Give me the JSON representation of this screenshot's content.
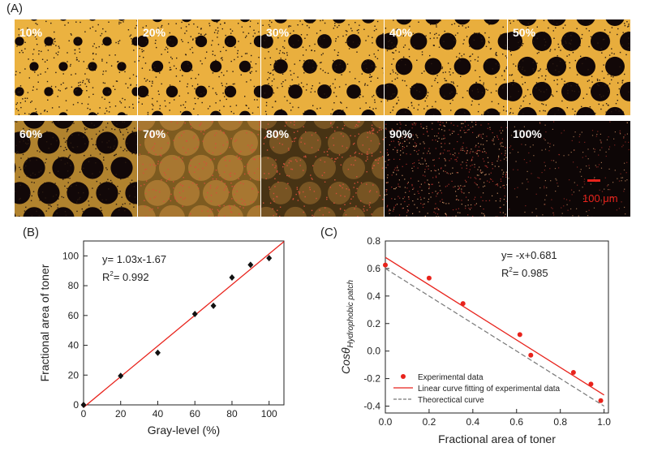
{
  "panel_a": {
    "label": "(A)",
    "tiles": [
      {
        "label": "10%",
        "coverage": 0.1
      },
      {
        "label": "20%",
        "coverage": 0.2
      },
      {
        "label": "30%",
        "coverage": 0.3
      },
      {
        "label": "40%",
        "coverage": 0.4
      },
      {
        "label": "50%",
        "coverage": 0.5
      },
      {
        "label": "60%",
        "coverage": 0.6
      },
      {
        "label": "70%",
        "coverage": 0.7
      },
      {
        "label": "80%",
        "coverage": 0.8
      },
      {
        "label": "90%",
        "coverage": 0.9
      },
      {
        "label": "100%",
        "coverage": 1.0
      }
    ],
    "scale_bar_label": "100 μm",
    "scale_bar_color": "#e8231c"
  },
  "chart_data": [
    {
      "panel_label": "(B)",
      "type": "scatter",
      "xlabel": "Gray-level (%)",
      "ylabel": "Fractional area of toner",
      "xlim": [
        0,
        108
      ],
      "ylim": [
        0,
        110
      ],
      "xticks": [
        0,
        20,
        40,
        60,
        80,
        100
      ],
      "yticks": [
        0,
        20,
        40,
        60,
        80,
        100
      ],
      "series": [
        {
          "marker": "diamond",
          "color": "#111111",
          "x": [
            0,
            20,
            40,
            60,
            70,
            80,
            90,
            100
          ],
          "y": [
            0,
            19.5,
            35,
            61,
            66.5,
            85.5,
            94,
            98.5
          ]
        }
      ],
      "fit": {
        "slope": 1.03,
        "intercept": -1.67,
        "x_range": [
          0,
          108
        ],
        "color": "#e8231c"
      },
      "equation": "y= 1.03x-1.67",
      "r2_prefix": "R",
      "r2_value": "= 0.992"
    },
    {
      "panel_label": "(C)",
      "type": "scatter",
      "xlabel": "Fractional area of toner",
      "ylabel_main": "Cosθ",
      "ylabel_sub": "Hydrophobic patch",
      "xlim": [
        0,
        1.02
      ],
      "ylim": [
        -0.45,
        0.8
      ],
      "xticks": [
        "0.0",
        "0.2",
        "0.4",
        "0.6",
        "0.8",
        "1.0"
      ],
      "yticks": [
        "-0.4",
        "-0.2",
        "0.0",
        "0.2",
        "0.4",
        "0.6",
        "0.8"
      ],
      "series": [
        {
          "name": "Experimental data",
          "marker": "circle",
          "color": "#e8231c",
          "x": [
            0.0,
            0.2,
            0.355,
            0.615,
            0.665,
            0.86,
            0.94,
            0.985
          ],
          "y": [
            0.625,
            0.53,
            0.345,
            0.12,
            -0.03,
            -0.155,
            -0.24,
            -0.36
          ]
        }
      ],
      "fit": {
        "name": "Linear curve fitting of experimental data",
        "slope": -1,
        "intercept": 0.681,
        "x_range": [
          0,
          1.0
        ],
        "color": "#e8231c"
      },
      "theory": {
        "name": "Theorectical curve",
        "x": [
          0,
          1.0
        ],
        "y": [
          0.6,
          -0.4
        ],
        "color": "#777777"
      },
      "equation": "y= -x+0.681",
      "r2_prefix": "R",
      "r2_value": "= 0.985",
      "legend_position": "bottom-left"
    }
  ]
}
